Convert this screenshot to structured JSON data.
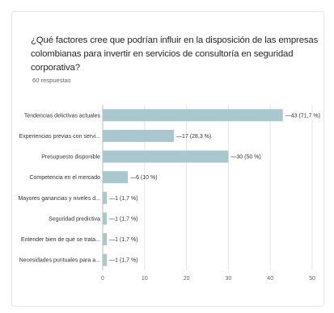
{
  "chart_data": {
    "type": "bar",
    "orientation": "horizontal",
    "title": "¿Qué factores cree que podrían influir en la disposición de las empresas colombianas para invertir en servicios de consultoría en seguridad corporativa?",
    "subtitle": "60 respuestas",
    "categories": [
      "Tendencias delictivas actuales",
      "Experiencias previas con servi...",
      "Presupuesto disponible",
      "Competencia en el mercado",
      "Mayores ganancias y niveles d...",
      "Seguridad predictiva",
      "Entender bien de qué se trata...",
      "Necesidades puntuales para a..."
    ],
    "values": [
      43,
      17,
      30,
      6,
      1,
      1,
      1,
      1
    ],
    "value_labels": [
      "43 (71,7 %)",
      "17 (28,3 %)",
      "30 (50 %)",
      "6 (10 %)",
      "1 (1,7 %)",
      "1 (1,7 %)",
      "1 (1,7 %)",
      "1 (1,7 %)"
    ],
    "xticks": [
      0,
      10,
      20,
      30,
      40,
      50
    ],
    "xlim": [
      0,
      50
    ],
    "grid": true,
    "bar_color": "#a8c7cf",
    "grid_color": "#e6e6e6"
  }
}
